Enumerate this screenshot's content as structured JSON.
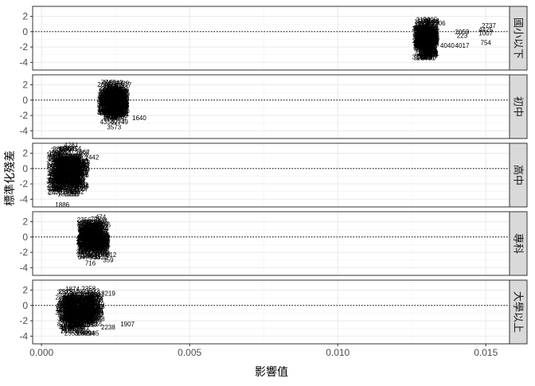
{
  "chart_data": {
    "type": "scatter",
    "xlabel": "影響值",
    "ylabel": "標準化殘差",
    "xlim": [
      -0.0003,
      0.0158
    ],
    "ylim": [
      -5,
      3.3
    ],
    "x_ticks": [
      0.0,
      0.005,
      0.01,
      0.015
    ],
    "x_tick_labels": [
      "0.000",
      "0.005",
      "0.010",
      "0.015"
    ],
    "y_ticks": [
      2,
      0,
      -2,
      -4
    ],
    "y_tick_labels": [
      "2",
      "0",
      "-2",
      "-4"
    ],
    "reference_line_y": 0,
    "grid": true,
    "facets": [
      {
        "strip": "國小以下",
        "cluster": {
          "x_range": [
            0.01275,
            0.0132
          ],
          "y_range": [
            -3.4,
            1.6
          ]
        },
        "labeled_points": [
          {
            "label": "2737",
            "x": 0.0151,
            "y": 0.8
          },
          {
            "label": "1007",
            "x": 0.015,
            "y": -0.2
          },
          {
            "label": "4425",
            "x": 0.015,
            "y": 0.3
          },
          {
            "label": "754",
            "x": 0.015,
            "y": -1.4
          },
          {
            "label": "2059",
            "x": 0.0142,
            "y": 0.0
          },
          {
            "label": "223",
            "x": 0.0142,
            "y": -0.5
          },
          {
            "label": "4017",
            "x": 0.0142,
            "y": -1.8
          },
          {
            "label": "4040",
            "x": 0.0137,
            "y": -1.8
          },
          {
            "label": "1947",
            "x": 0.0129,
            "y": -3.4
          },
          {
            "label": "3306",
            "x": 0.0134,
            "y": 1.1
          }
        ]
      },
      {
        "strip": "初中",
        "cluster": {
          "x_range": [
            0.0021,
            0.00275
          ],
          "y_range": [
            -2.8,
            2.3
          ]
        },
        "labeled_points": [
          {
            "label": "4151",
            "x": 0.0023,
            "y": 2.3
          },
          {
            "label": "3977",
            "x": 0.0028,
            "y": 2.0
          },
          {
            "label": "3573",
            "x": 0.00245,
            "y": -3.5
          },
          {
            "label": "1640",
            "x": 0.0033,
            "y": -2.3
          }
        ]
      },
      {
        "strip": "高中",
        "cluster": {
          "x_range": [
            0.0004,
            0.0014
          ],
          "y_range": [
            -3.3,
            2.6
          ]
        },
        "labeled_points": [
          {
            "label": "4281",
            "x": 0.001,
            "y": 3.1
          },
          {
            "label": "2442",
            "x": 0.0017,
            "y": 1.5
          },
          {
            "label": "1886",
            "x": 0.0007,
            "y": -4.7
          }
        ]
      },
      {
        "strip": "專科",
        "cluster": {
          "x_range": [
            0.0014,
            0.0021
          ],
          "y_range": [
            -2.6,
            2.4
          ]
        },
        "labeled_points": [
          {
            "label": "474",
            "x": 0.002,
            "y": 2.6
          },
          {
            "label": "716",
            "x": 0.00165,
            "y": -3.4
          },
          {
            "label": "359",
            "x": 0.00225,
            "y": -3.0
          },
          {
            "label": "612",
            "x": 0.00235,
            "y": -2.3
          }
        ]
      },
      {
        "strip": "大學以上",
        "cluster": {
          "x_range": [
            0.0007,
            0.0019
          ],
          "y_range": [
            -3.6,
            2.2
          ]
        },
        "labeled_points": [
          {
            "label": "1907",
            "x": 0.0029,
            "y": -2.4
          },
          {
            "label": "2238",
            "x": 0.00225,
            "y": -2.8
          },
          {
            "label": "3219",
            "x": 0.00225,
            "y": 1.6
          }
        ]
      }
    ]
  }
}
